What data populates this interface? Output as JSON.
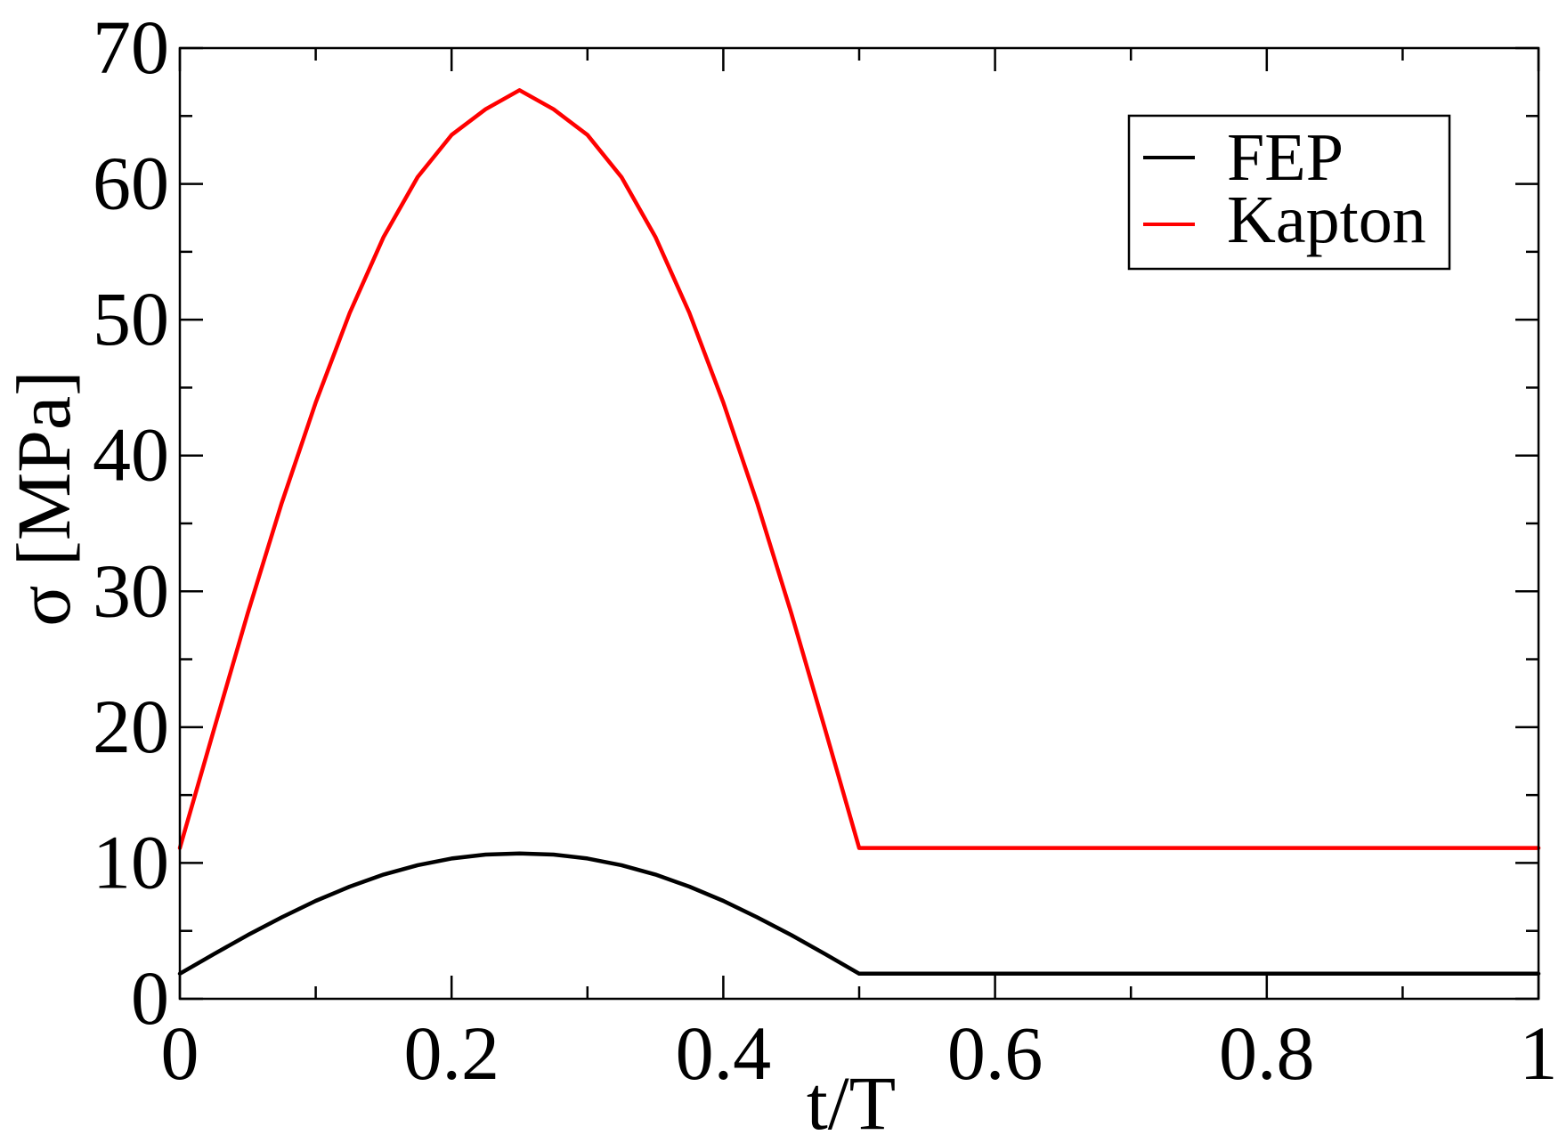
{
  "chart_data": {
    "type": "line",
    "title": "",
    "xlabel": "t/T",
    "ylabel": "σ [MPa]",
    "xlim": [
      0,
      1
    ],
    "ylim": [
      0,
      70
    ],
    "grid": false,
    "legend_position": "top-right",
    "x_ticks": [
      0,
      0.2,
      0.4,
      0.6,
      0.8,
      1
    ],
    "x_tick_labels": [
      "0",
      "0.2",
      "0.4",
      "0.6",
      "0.8",
      "1"
    ],
    "y_ticks": [
      0,
      10,
      20,
      30,
      40,
      50,
      60,
      70
    ],
    "y_tick_labels": [
      "0",
      "10",
      "20",
      "30",
      "40",
      "50",
      "60",
      "70"
    ],
    "series": [
      {
        "name": "FEP",
        "color": "#000000",
        "x": [
          0,
          0.025,
          0.05,
          0.075,
          0.1,
          0.125,
          0.15,
          0.175,
          0.2,
          0.225,
          0.25,
          0.275,
          0.3,
          0.325,
          0.35,
          0.375,
          0.4,
          0.425,
          0.45,
          0.475,
          0.5,
          0.6,
          0.7,
          0.8,
          0.9,
          1.0
        ],
        "values": [
          1.85,
          3.29,
          4.69,
          6.0,
          7.21,
          8.26,
          9.15,
          9.84,
          10.33,
          10.62,
          10.7,
          10.62,
          10.33,
          9.84,
          9.15,
          8.26,
          7.21,
          6.0,
          4.69,
          3.29,
          1.85,
          1.85,
          1.85,
          1.85,
          1.85,
          1.85
        ]
      },
      {
        "name": "Kapton",
        "color": "#ff0000",
        "x": [
          0,
          0.025,
          0.05,
          0.075,
          0.1,
          0.125,
          0.15,
          0.175,
          0.2,
          0.225,
          0.25,
          0.275,
          0.3,
          0.325,
          0.35,
          0.375,
          0.4,
          0.425,
          0.45,
          0.475,
          0.5,
          0.6,
          0.7,
          0.8,
          0.9,
          1.0
        ],
        "values": [
          11.1,
          19.8,
          28.4,
          36.5,
          43.9,
          50.5,
          56.1,
          60.5,
          63.6,
          65.5,
          66.9,
          65.5,
          63.6,
          60.5,
          56.1,
          50.5,
          43.9,
          36.5,
          28.4,
          19.8,
          11.1,
          11.1,
          11.1,
          11.1,
          11.1,
          11.1
        ]
      }
    ]
  }
}
